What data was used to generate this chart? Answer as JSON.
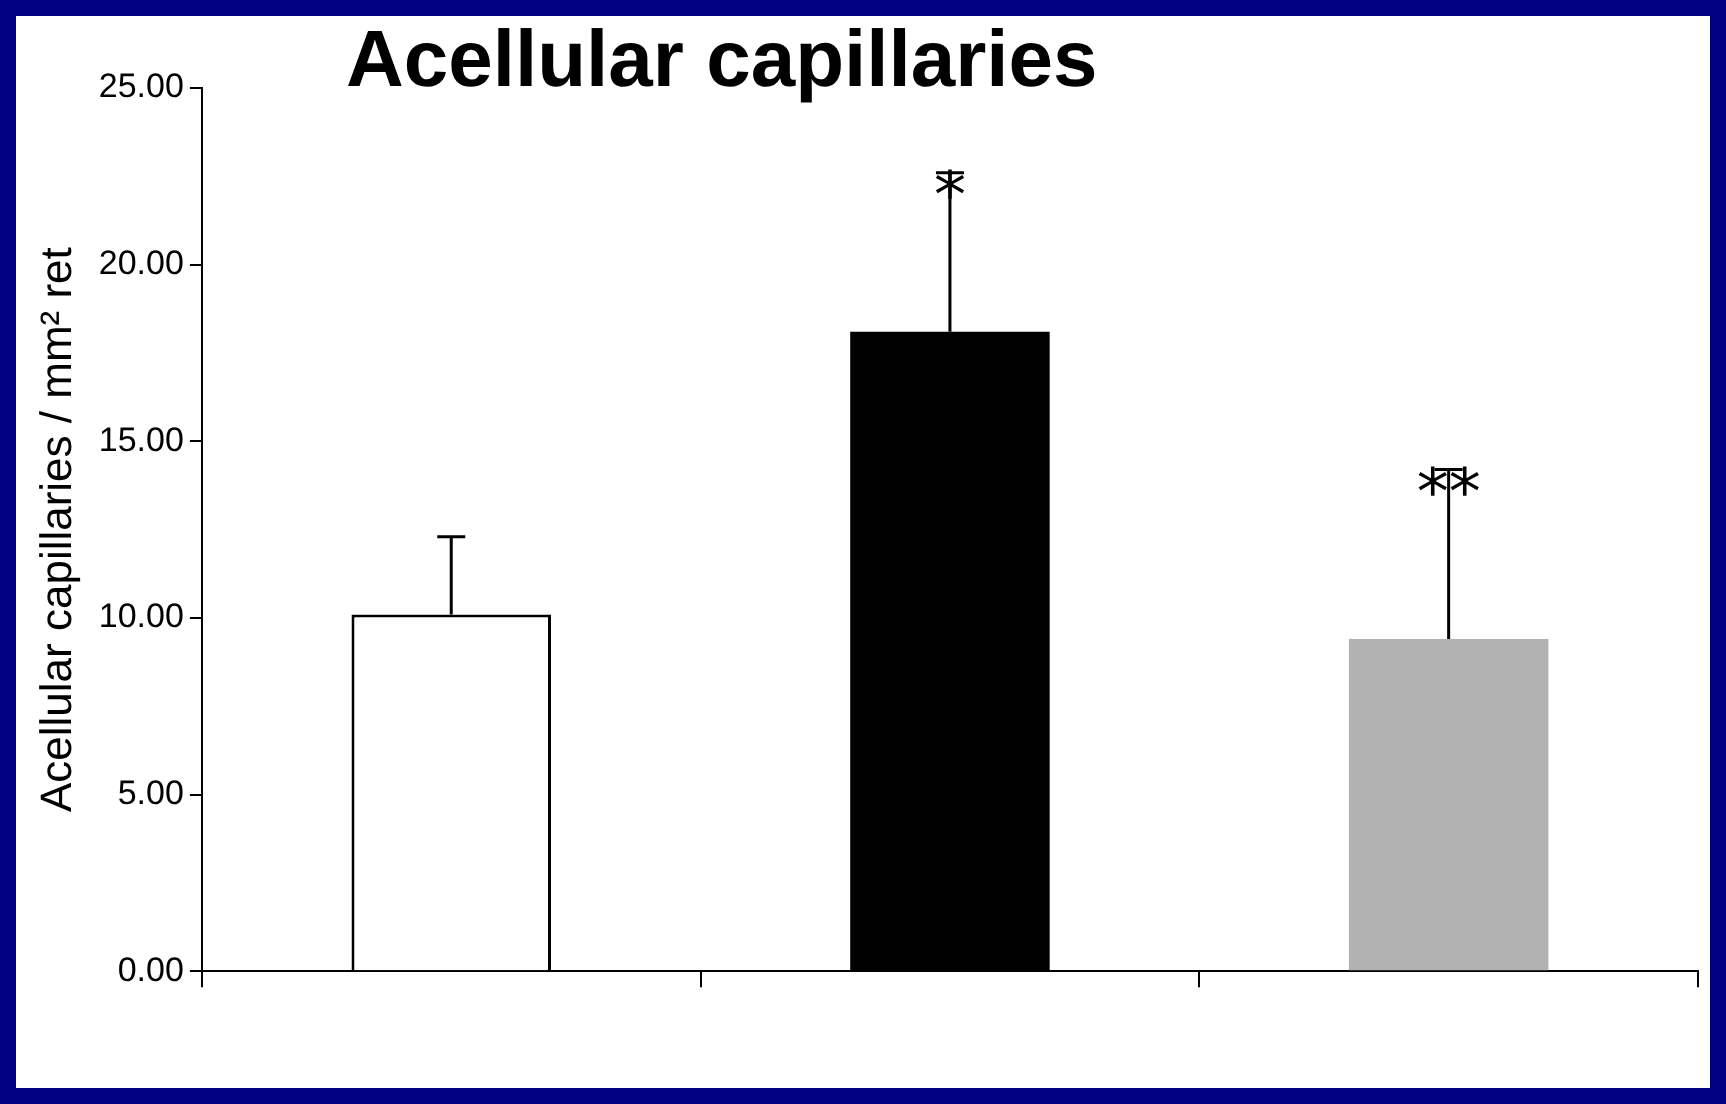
{
  "chart_data": {
    "type": "bar",
    "title": "Acellular capillaries",
    "ylabel": "Acellular capillaries / mm² ret",
    "categories": [
      null,
      null,
      null
    ],
    "values": [
      10.1,
      18.1,
      9.4
    ],
    "colors": [
      "#ffffff",
      "#000000",
      "#b2b2b2"
    ],
    "errors": [
      [
        10.1,
        12.3
      ],
      [
        18.1,
        22.6
      ],
      [
        9.4,
        14.2
      ]
    ],
    "ylim": [
      0,
      25
    ],
    "yticks": [
      {
        "value": 0,
        "label": "0.00"
      },
      {
        "value": 5,
        "label": "5.00"
      },
      {
        "value": 10,
        "label": "10.00"
      },
      {
        "value": 15,
        "label": "15.00"
      },
      {
        "value": 20,
        "label": "20.00"
      },
      {
        "value": 25,
        "label": "25.00"
      }
    ],
    "annotations": [
      {
        "text": "*",
        "y": 22.6
      },
      {
        "text": "**",
        "y": 14.2
      }
    ],
    "grid": false,
    "legend": false
  }
}
